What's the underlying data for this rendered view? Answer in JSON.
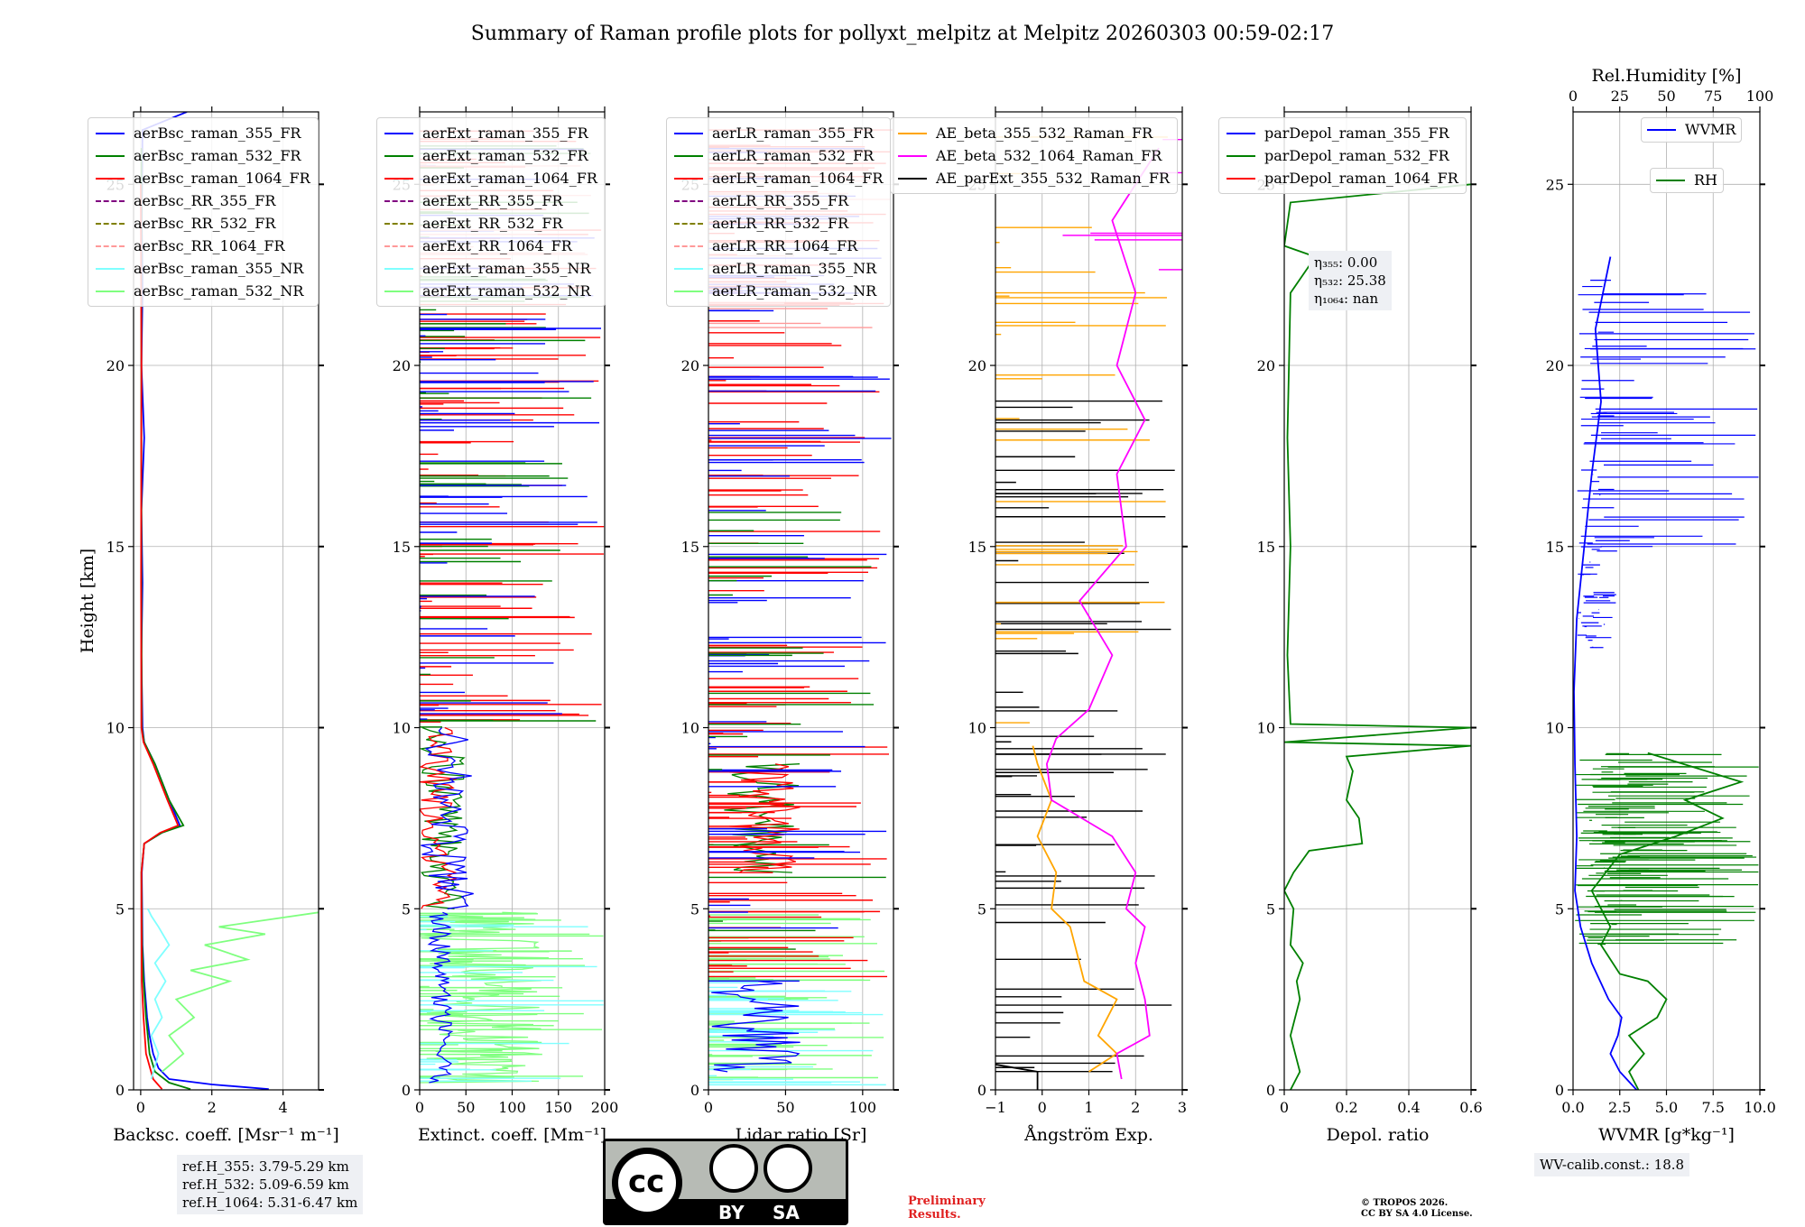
{
  "figure_title": "Summary of Raman profile plots for pollyxt_melpitz at Melpitz 20260303 00:59-02:17",
  "colors": {
    "blue": "#0000ff",
    "green": "#008000",
    "red": "#ff0000",
    "purple": "#800080",
    "olive": "#808000",
    "salmon": "#ff9999",
    "cyan": "#7fffff",
    "lightgreen": "#7fff7f",
    "orange": "#ffa500",
    "magenta": "#ff00ff",
    "black": "#000000"
  },
  "chart_data": [
    {
      "id": "backscatter",
      "type": "line",
      "xlabel": "Backsc. coeff. [Msr⁻¹ m⁻¹]",
      "ylabel": "Height [km]",
      "xlim": [
        -0.2,
        5
      ],
      "ylim": [
        0,
        27
      ],
      "xticks": [
        0,
        2,
        4
      ],
      "yticks": [
        0,
        5,
        10,
        15,
        20,
        25
      ],
      "legend": [
        "aerBsc_raman_355_FR",
        "aerBsc_raman_532_FR",
        "aerBsc_raman_1064_FR",
        "aerBsc_RR_355_FR",
        "aerBsc_RR_532_FR",
        "aerBsc_RR_1064_FR",
        "aerBsc_raman_355_NR",
        "aerBsc_raman_532_NR"
      ],
      "series": [
        {
          "name": "aerBsc_raman_355_FR",
          "color": "blue",
          "points": [
            [
              3.6,
              0.02
            ],
            [
              2.0,
              0.15
            ],
            [
              0.8,
              0.3
            ],
            [
              0.5,
              0.6
            ],
            [
              0.35,
              1.0
            ],
            [
              0.25,
              1.5
            ],
            [
              0.18,
              2.0
            ],
            [
              0.1,
              3.0
            ],
            [
              0.05,
              4.0
            ],
            [
              0.04,
              5.0
            ],
            [
              0.03,
              6.0
            ],
            [
              0.1,
              6.8
            ],
            [
              0.6,
              7.1
            ],
            [
              1.1,
              7.3
            ],
            [
              0.8,
              8.0
            ],
            [
              0.4,
              9.0
            ],
            [
              0.1,
              9.6
            ],
            [
              0.05,
              10.0
            ],
            [
              0.02,
              12.0
            ],
            [
              0.05,
              14.0
            ],
            [
              0.02,
              16.0
            ],
            [
              0.1,
              18.0
            ],
            [
              0.02,
              20.0
            ],
            [
              0.05,
              22.0
            ],
            [
              0.03,
              24.0
            ],
            [
              0.05,
              26.5
            ],
            [
              1.3,
              27.0
            ]
          ]
        },
        {
          "name": "aerBsc_raman_532_FR",
          "color": "green",
          "points": [
            [
              1.4,
              0.02
            ],
            [
              0.8,
              0.2
            ],
            [
              0.4,
              0.5
            ],
            [
              0.25,
              1.0
            ],
            [
              0.15,
              2.0
            ],
            [
              0.08,
              3.0
            ],
            [
              0.04,
              4.0
            ],
            [
              0.03,
              5.0
            ],
            [
              0.02,
              6.0
            ],
            [
              0.1,
              6.8
            ],
            [
              0.6,
              7.1
            ],
            [
              1.2,
              7.3
            ],
            [
              0.8,
              8.0
            ],
            [
              0.4,
              9.0
            ],
            [
              0.1,
              9.6
            ],
            [
              0.03,
              10.0
            ],
            [
              0.02,
              14.0
            ],
            [
              0.02,
              20.0
            ],
            [
              0.02,
              26.0
            ]
          ]
        },
        {
          "name": "aerBsc_raman_1064_FR",
          "color": "red",
          "points": [
            [
              0.6,
              0.02
            ],
            [
              0.35,
              0.3
            ],
            [
              0.15,
              1.0
            ],
            [
              0.08,
              2.0
            ],
            [
              0.03,
              3.0
            ],
            [
              0.02,
              5.0
            ],
            [
              0.02,
              6.0
            ],
            [
              0.1,
              6.8
            ],
            [
              0.55,
              7.1
            ],
            [
              1.05,
              7.3
            ],
            [
              0.75,
              8.0
            ],
            [
              0.35,
              9.0
            ],
            [
              0.08,
              9.6
            ],
            [
              0.02,
              10.0
            ],
            [
              0.01,
              14.0
            ],
            [
              0.02,
              20.0
            ],
            [
              0.0,
              25.0
            ]
          ]
        },
        {
          "name": "aerBsc_raman_355_NR",
          "color": "cyan",
          "points": [
            [
              0.3,
              0.3
            ],
            [
              0.5,
              1.0
            ],
            [
              0.3,
              1.5
            ],
            [
              0.6,
              2.0
            ],
            [
              0.4,
              2.5
            ],
            [
              0.7,
              3.0
            ],
            [
              0.4,
              3.5
            ],
            [
              0.8,
              4.0
            ],
            [
              0.5,
              4.5
            ],
            [
              0.3,
              4.8
            ],
            [
              0.2,
              5.0
            ]
          ]
        },
        {
          "name": "aerBsc_raman_532_NR",
          "color": "lightgreen",
          "points": [
            [
              0.6,
              0.5
            ],
            [
              1.2,
              1.0
            ],
            [
              0.8,
              1.5
            ],
            [
              1.5,
              2.0
            ],
            [
              1.0,
              2.5
            ],
            [
              2.5,
              3.0
            ],
            [
              1.4,
              3.3
            ],
            [
              3.0,
              3.6
            ],
            [
              1.8,
              4.0
            ],
            [
              3.5,
              4.3
            ],
            [
              2.2,
              4.5
            ],
            [
              5.0,
              4.9
            ]
          ]
        }
      ]
    },
    {
      "id": "extinction",
      "type": "line",
      "xlabel": "Extinct. coeff. [Mm⁻¹]",
      "xlim": [
        0,
        200
      ],
      "ylim": [
        0,
        27
      ],
      "xticks": [
        0,
        50,
        100,
        150,
        200
      ],
      "yticks": [
        0,
        5,
        10,
        15,
        20,
        25
      ],
      "legend": [
        "aerExt_raman_355_FR",
        "aerExt_raman_532_FR",
        "aerExt_raman_1064_FR",
        "aerExt_RR_355_FR",
        "aerExt_RR_532_FR",
        "aerExt_RR_1064_FR",
        "aerExt_raman_355_NR",
        "aerExt_raman_532_NR"
      ],
      "series": [
        {
          "name": "aerExt_raman_355_FR",
          "color": "blue",
          "noisy_range": [
            0,
            200
          ]
        },
        {
          "name": "aerExt_raman_532_FR",
          "color": "green",
          "noisy_range": [
            0,
            200
          ]
        },
        {
          "name": "aerExt_raman_1064_FR",
          "color": "red",
          "noisy_range": [
            0,
            200
          ]
        },
        {
          "name": "aerExt_raman_355_NR",
          "color": "cyan",
          "height_range_km": [
            0,
            5
          ]
        },
        {
          "name": "aerExt_raman_532_NR",
          "color": "lightgreen",
          "height_range_km": [
            0,
            5
          ]
        }
      ]
    },
    {
      "id": "lidar-ratio",
      "type": "line",
      "xlabel": "Lidar ratio [Sr]",
      "xlim": [
        0,
        120
      ],
      "ylim": [
        0,
        27
      ],
      "xticks": [
        0,
        50,
        100
      ],
      "yticks": [
        0,
        5,
        10,
        15,
        20,
        25
      ],
      "legend": [
        "aerLR_raman_355_FR",
        "aerLR_raman_532_FR",
        "aerLR_raman_1064_FR",
        "aerLR_RR_355_FR",
        "aerLR_RR_532_FR",
        "aerLR_RR_1064_FR",
        "aerLR_raman_355_NR",
        "aerLR_raman_532_NR"
      ]
    },
    {
      "id": "angstrom",
      "type": "line",
      "xlabel": "Ångström Exp.",
      "xlim": [
        -1,
        3
      ],
      "ylim": [
        0,
        27
      ],
      "xticks": [
        -1,
        0,
        1,
        2,
        3
      ],
      "yticks": [
        0,
        5,
        10,
        15,
        20,
        25
      ],
      "legend": [
        "AE_beta_355_532_Raman_FR",
        "AE_beta_532_1064_Raman_FR",
        "AE_parExt_355_532_Raman_FR"
      ],
      "series": [
        {
          "name": "AE_beta_355_532_Raman_FR",
          "color": "orange",
          "points": [
            [
              1.0,
              0.5
            ],
            [
              1.6,
              1.0
            ],
            [
              1.2,
              1.5
            ],
            [
              1.4,
              2.0
            ],
            [
              1.6,
              2.5
            ],
            [
              0.9,
              3.0
            ],
            [
              0.7,
              4.0
            ],
            [
              0.6,
              4.5
            ],
            [
              0.2,
              5.0
            ],
            [
              0.3,
              6.0
            ],
            [
              -0.1,
              7.0
            ],
            [
              0.2,
              8.0
            ],
            [
              -0.1,
              9.0
            ],
            [
              -0.2,
              9.5
            ]
          ]
        },
        {
          "name": "AE_beta_532_1064_Raman_FR",
          "color": "magenta",
          "points": [
            [
              1.7,
              0.3
            ],
            [
              1.6,
              1.0
            ],
            [
              2.3,
              1.5
            ],
            [
              2.2,
              2.5
            ],
            [
              2.0,
              3.5
            ],
            [
              2.2,
              4.5
            ],
            [
              1.8,
              5.0
            ],
            [
              2.0,
              6.0
            ],
            [
              1.5,
              7.0
            ],
            [
              0.2,
              8.0
            ],
            [
              0.1,
              9.0
            ],
            [
              0.3,
              9.7
            ],
            [
              1.0,
              10.5
            ],
            [
              1.5,
              12.0
            ],
            [
              0.8,
              13.5
            ],
            [
              1.8,
              15.0
            ],
            [
              1.6,
              17.0
            ],
            [
              2.2,
              18.5
            ],
            [
              1.6,
              20.0
            ],
            [
              2.0,
              22.0
            ],
            [
              1.5,
              24.0
            ],
            [
              2.5,
              26.0
            ]
          ]
        },
        {
          "name": "AE_parExt_355_532_Raman_FR",
          "color": "black",
          "points": [
            [
              -1,
              0.7
            ],
            [
              -0.1,
              0.5
            ],
            [
              -0.1,
              0.0
            ]
          ]
        }
      ]
    },
    {
      "id": "depol",
      "type": "line",
      "xlabel": "Depol. ratio",
      "xlim": [
        0,
        0.6
      ],
      "ylim": [
        0,
        27
      ],
      "xticks": [
        0.0,
        0.2,
        0.4,
        0.6
      ],
      "yticks": [
        0,
        5,
        10,
        15,
        20,
        25
      ],
      "legend": [
        "parDepol_raman_355_FR",
        "parDepol_raman_532_FR",
        "parDepol_raman_1064_FR"
      ],
      "series": [
        {
          "name": "parDepol_raman_532_FR",
          "color": "green",
          "points": [
            [
              0.02,
              0.0
            ],
            [
              0.05,
              0.5
            ],
            [
              0.02,
              1.5
            ],
            [
              0.05,
              2.5
            ],
            [
              0.04,
              3.0
            ],
            [
              0.06,
              3.5
            ],
            [
              0.02,
              4.0
            ],
            [
              0.03,
              5.0
            ],
            [
              0.0,
              5.5
            ],
            [
              0.03,
              6.0
            ],
            [
              0.08,
              6.6
            ],
            [
              0.25,
              6.8
            ],
            [
              0.24,
              7.5
            ],
            [
              0.2,
              8.0
            ],
            [
              0.22,
              8.8
            ],
            [
              0.2,
              9.2
            ],
            [
              0.6,
              9.5
            ],
            [
              0.0,
              9.6
            ],
            [
              0.6,
              10.0
            ],
            [
              0.02,
              10.1
            ],
            [
              0.01,
              12.0
            ],
            [
              0.02,
              15.0
            ],
            [
              0.01,
              18.0
            ],
            [
              0.02,
              22.0
            ],
            [
              0.1,
              23.0
            ],
            [
              0.0,
              23.3
            ],
            [
              0.02,
              24.5
            ],
            [
              0.6,
              25.0
            ]
          ]
        }
      ],
      "annotation": {
        "lines": [
          "η₃₅₅: 0.00",
          "η₅₃₂: 25.38",
          "η₁₀₆₄: nan"
        ]
      }
    },
    {
      "id": "wvmr",
      "type": "line",
      "xlabel": "WVMR [g*kg⁻¹]",
      "x2label": "Rel.Humidity [%]",
      "xlim": [
        0,
        10
      ],
      "x2lim": [
        0,
        100
      ],
      "ylim": [
        0,
        27
      ],
      "xticks": [
        0.0,
        2.5,
        5.0,
        7.5,
        10.0
      ],
      "xticklabels": [
        "0.0",
        "2.5",
        "5.0",
        "7.5",
        "10.0"
      ],
      "x2ticks": [
        0,
        25,
        50,
        75,
        100
      ],
      "yticks": [
        0,
        5,
        10,
        15,
        20,
        25
      ],
      "legend": [
        "WVMR",
        "RH"
      ],
      "series": [
        {
          "name": "WVMR",
          "color": "blue",
          "points": [
            [
              3.4,
              0.0
            ],
            [
              2.5,
              0.5
            ],
            [
              2.0,
              1.0
            ],
            [
              2.4,
              1.5
            ],
            [
              2.6,
              2.0
            ],
            [
              1.9,
              2.5
            ],
            [
              1.0,
              3.5
            ],
            [
              0.4,
              4.5
            ],
            [
              0.1,
              5.5
            ],
            [
              0.2,
              7.0
            ],
            [
              0.1,
              9.0
            ],
            [
              0.05,
              11.0
            ],
            [
              0.2,
              13.0
            ],
            [
              0.6,
              15.0
            ],
            [
              1.0,
              17.0
            ],
            [
              1.5,
              19.0
            ],
            [
              1.2,
              21.0
            ],
            [
              2.0,
              23.0
            ]
          ]
        },
        {
          "name": "RH",
          "color": "green",
          "points": [
            [
              35,
              0.0
            ],
            [
              30,
              0.5
            ],
            [
              38,
              1.0
            ],
            [
              30,
              1.5
            ],
            [
              45,
              2.0
            ],
            [
              50,
              2.5
            ],
            [
              40,
              3.0
            ],
            [
              25,
              3.2
            ],
            [
              15,
              4.0
            ],
            [
              20,
              4.5
            ],
            [
              10,
              5.5
            ],
            [
              25,
              6.5
            ],
            [
              55,
              7.0
            ],
            [
              80,
              7.5
            ],
            [
              60,
              8.0
            ],
            [
              90,
              8.5
            ],
            [
              40,
              9.3
            ]
          ]
        }
      ],
      "annotation": "WV-calib.const.: 18.8"
    }
  ],
  "ref_heights": [
    "ref.H_355: 3.79-5.29 km",
    "ref.H_532: 5.09-6.59 km",
    "ref.H_1064: 5.31-6.47 km"
  ],
  "license_badge": {
    "cc": "cc",
    "by": "BY",
    "sa": "SA"
  },
  "preliminary": [
    "Preliminary",
    "Results."
  ],
  "copyright": [
    "© TROPOS 2026.",
    "CC BY SA 4.0 License."
  ]
}
